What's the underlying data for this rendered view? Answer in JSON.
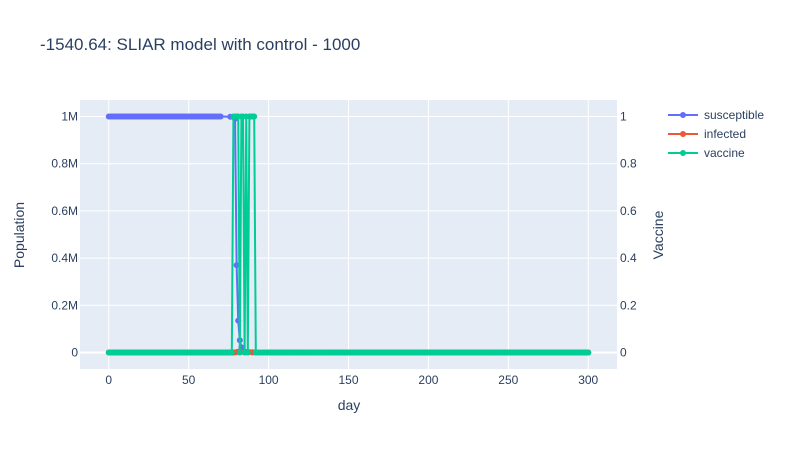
{
  "chart_data": {
    "type": "line",
    "title": "-1540.64: SLIAR model with control - 1000",
    "xlabel": "day",
    "ylabel": "Population",
    "y2label": "Vaccine",
    "xlim": [
      -18,
      318
    ],
    "ylim": [
      -70000,
      1070000
    ],
    "y2lim": [
      -0.07,
      1.07
    ],
    "x_ticks": [
      0,
      50,
      100,
      150,
      200,
      250,
      300
    ],
    "x_tick_labels": [
      "0",
      "50",
      "100",
      "150",
      "200",
      "250",
      "300"
    ],
    "y_ticks": [
      0,
      200000,
      400000,
      600000,
      800000,
      1000000
    ],
    "y_tick_labels": [
      "0",
      "0.2M",
      "0.4M",
      "0.6M",
      "0.8M",
      "1M"
    ],
    "y2_ticks": [
      0,
      0.2,
      0.4,
      0.6,
      0.8,
      1
    ],
    "y2_tick_labels": [
      "0",
      "0.2",
      "0.4",
      "0.6",
      "0.8",
      "1"
    ],
    "grid": true,
    "legend_position": "top-right",
    "series": [
      {
        "name": "susceptible",
        "color": "#636efa",
        "axis": "y",
        "x": [
          0,
          10,
          20,
          30,
          40,
          50,
          60,
          70,
          76,
          78,
          79,
          80,
          81,
          82,
          83,
          84,
          85,
          86,
          90,
          100,
          150,
          200,
          250,
          300
        ],
        "values": [
          1000000,
          1000000,
          1000000,
          1000000,
          1000000,
          1000000,
          1000000,
          1000000,
          999000,
          998000,
          990000,
          370000,
          135000,
          52000,
          22000,
          8000,
          3000,
          1000,
          200,
          0,
          0,
          0,
          0,
          0
        ]
      },
      {
        "name": "infected",
        "color": "#ef553b",
        "axis": "y",
        "x": [
          0,
          50,
          78,
          79,
          80,
          81,
          82,
          83,
          84,
          86,
          88,
          90,
          92,
          100,
          150,
          200,
          250,
          300
        ],
        "values": [
          0,
          0,
          0,
          500,
          1500,
          3000,
          3500,
          3000,
          2500,
          2000,
          1500,
          1000,
          600,
          200,
          0,
          0,
          0,
          0
        ]
      },
      {
        "name": "vaccine",
        "color": "#00cc96",
        "axis": "y2",
        "x": [
          0,
          10,
          20,
          30,
          40,
          50,
          60,
          70,
          77,
          78,
          79,
          80,
          81,
          82,
          83,
          84,
          85,
          86,
          87,
          88,
          89,
          90,
          91,
          92,
          93,
          100,
          120,
          140,
          160,
          180,
          200,
          220,
          240,
          260,
          280,
          300
        ],
        "values": [
          0,
          0,
          0,
          0,
          0,
          0,
          0,
          0,
          0,
          1,
          1,
          1,
          1,
          0,
          1,
          1,
          0,
          1,
          0,
          1,
          1,
          1,
          1,
          0,
          0,
          0,
          0,
          0,
          0,
          0,
          0,
          0,
          0,
          0,
          0,
          0
        ]
      }
    ]
  }
}
